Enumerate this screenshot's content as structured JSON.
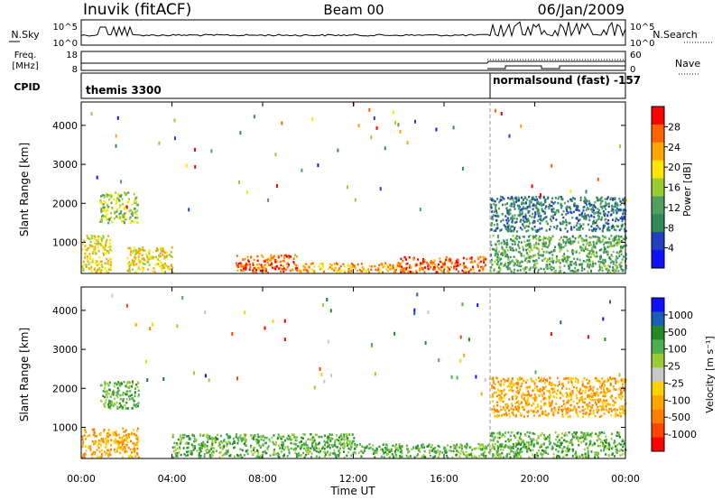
{
  "header": {
    "station": "Inuvik (fitACF)",
    "beam": "Beam 00",
    "date": "06/Jan/2009"
  },
  "top_panels": {
    "nsky_label": "N.Sky",
    "nsky_ticks": [
      "10^5",
      "10^0"
    ],
    "nsearch_label": "N.Search",
    "nsearch_ticks": [
      "10^5",
      "10^0"
    ],
    "freq_label": "Freq.",
    "freq_unit": "[MHz]",
    "freq_ticks": [
      "18",
      "8"
    ],
    "nave_label": "Nave",
    "nave_ticks": [
      "60",
      "0"
    ],
    "cpid_label": "CPID",
    "cpid_segments": [
      {
        "label": "themis 3300",
        "start_hour": 0,
        "end_hour": 18
      },
      {
        "label": "normalsound (fast) -157",
        "start_hour": 18,
        "end_hour": 24
      }
    ]
  },
  "colors": {
    "power_scale": [
      "#1010ff",
      "#2040c0",
      "#2e8b57",
      "#50a060",
      "#9acd32",
      "#ffe600",
      "#ffa500",
      "#ff6400",
      "#ff0000"
    ],
    "velocity_scale": [
      "#1010ff",
      "#1a5fb4",
      "#228b22",
      "#4caf50",
      "#9acd32",
      "#c8c8c8",
      "#ffd200",
      "#ffa500",
      "#ff7f00",
      "#ff4500",
      "#ff0000"
    ]
  },
  "chart_data": [
    {
      "type": "heatmap",
      "title": "",
      "ylabel": "Slant Range [km]",
      "xlabel": "",
      "xlim": [
        0,
        24
      ],
      "ylim": [
        200,
        4600
      ],
      "yticks": [
        "1000",
        "2000",
        "3000",
        "4000"
      ],
      "colorbar": {
        "label": "Power [dB]",
        "ticks": [
          "4",
          "8",
          "12",
          "16",
          "20",
          "24",
          "28"
        ],
        "range": [
          0,
          32
        ]
      },
      "scatter_bands": [
        {
          "x": [
            0,
            1.3
          ],
          "y": [
            250,
            1200
          ],
          "value": 18
        },
        {
          "x": [
            0.8,
            2.5
          ],
          "y": [
            1500,
            2300
          ],
          "value": 16
        },
        {
          "x": [
            2,
            4
          ],
          "y": [
            250,
            900
          ],
          "value": 20
        },
        {
          "x": [
            6.8,
            9.5
          ],
          "y": [
            250,
            700
          ],
          "value": 28
        },
        {
          "x": [
            9.5,
            14
          ],
          "y": [
            250,
            500
          ],
          "value": 22
        },
        {
          "x": [
            14,
            17.8
          ],
          "y": [
            250,
            650
          ],
          "value": 28
        },
        {
          "x": [
            18,
            24
          ],
          "y": [
            250,
            1200
          ],
          "value": 12
        },
        {
          "x": [
            18,
            24
          ],
          "y": [
            1300,
            2200
          ],
          "value": 8
        }
      ]
    },
    {
      "type": "heatmap",
      "title": "",
      "ylabel": "Slant Range [km]",
      "xlabel": "Time UT",
      "xlim": [
        0,
        24
      ],
      "ylim": [
        200,
        4600
      ],
      "xticks": [
        "00:00",
        "04:00",
        "08:00",
        "12:00",
        "16:00",
        "20:00",
        "00:00"
      ],
      "yticks": [
        "1000",
        "2000",
        "3000",
        "4000"
      ],
      "colorbar": {
        "label": "Velocity [m s⁻¹]",
        "ticks": [
          "1000",
          "500",
          "100",
          "25",
          "-25",
          "-100",
          "-500",
          "-1000"
        ]
      },
      "scatter_bands": [
        {
          "x": [
            0,
            2.5
          ],
          "y": [
            250,
            1000
          ],
          "value": -100
        },
        {
          "x": [
            0.8,
            2.5
          ],
          "y": [
            1500,
            2200
          ],
          "value": 100
        },
        {
          "x": [
            4,
            12
          ],
          "y": [
            250,
            850
          ],
          "value": 100
        },
        {
          "x": [
            12,
            18
          ],
          "y": [
            250,
            600
          ],
          "value": 100
        },
        {
          "x": [
            18,
            24
          ],
          "y": [
            250,
            900
          ],
          "value": 100
        },
        {
          "x": [
            18,
            24
          ],
          "y": [
            1300,
            2300
          ],
          "value": -100
        }
      ]
    }
  ]
}
